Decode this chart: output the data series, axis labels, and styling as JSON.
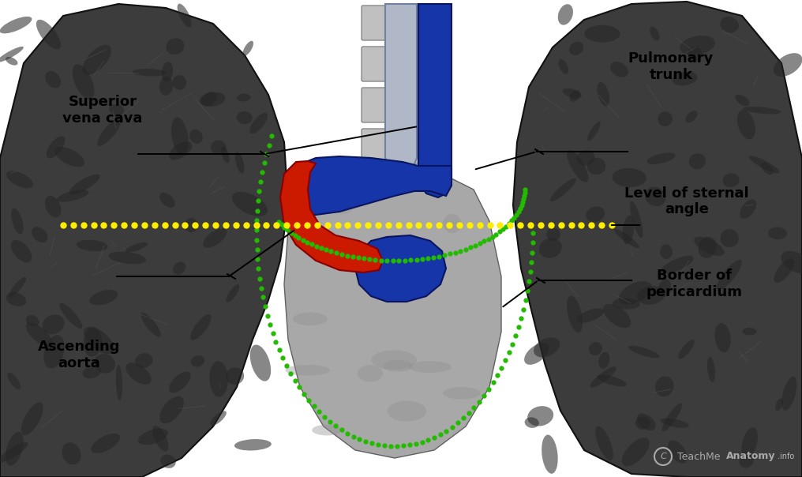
{
  "figsize": [
    10.16,
    6.04
  ],
  "dpi": 100,
  "bg_color": "#ffffff",
  "labels": {
    "superior_vena_cava": "Superior\nvena cava",
    "pulmonary_trunk": "Pulmonary\ntrunk",
    "level_sternal_angle": "Level of sternal\nangle",
    "ascending_aorta": "Ascending\naorta",
    "border_pericardium": "Border of\npericardium"
  },
  "blue_color": "#1535a8",
  "red_color": "#cc1a00",
  "green_dotted_color": "#22bb00",
  "yellow_color": "#ffee00",
  "annotation_fontsize": 13,
  "annotation_fontweight": "bold",
  "lw_ann": 1.4
}
